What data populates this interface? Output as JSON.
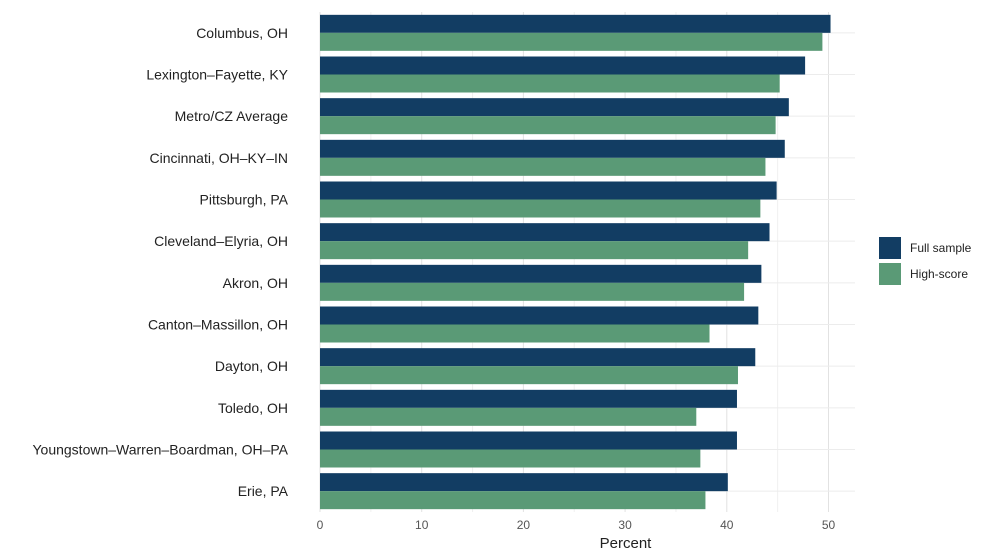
{
  "chart_data": {
    "type": "bar",
    "orientation": "horizontal",
    "categories": [
      "Columbus, OH",
      "Lexington–Fayette, KY",
      "Metro/CZ Average",
      "Cincinnati, OH–KY–IN",
      "Pittsburgh, PA",
      "Cleveland–Elyria, OH",
      "Akron, OH",
      "Canton–Massillon, OH",
      "Dayton, OH",
      "Toledo, OH",
      "Youngstown–Warren–Boardman, OH–PA",
      "Erie, PA"
    ],
    "series": [
      {
        "name": "Full sample",
        "color": "#123d63",
        "values": [
          50.2,
          47.7,
          46.1,
          45.7,
          44.9,
          44.2,
          43.4,
          43.1,
          42.8,
          41.0,
          41.0,
          40.1
        ]
      },
      {
        "name": "High-score",
        "color": "#5a9a76",
        "values": [
          49.4,
          45.2,
          44.8,
          43.8,
          43.3,
          42.1,
          41.7,
          38.3,
          41.1,
          37.0,
          37.4,
          37.9
        ]
      }
    ],
    "xlabel": "Percent",
    "ylabel": "",
    "title": "",
    "xlim": [
      0,
      52.5
    ],
    "xticks": [
      0,
      10,
      20,
      30,
      40,
      50
    ],
    "grid": true,
    "legend_position": "right"
  }
}
